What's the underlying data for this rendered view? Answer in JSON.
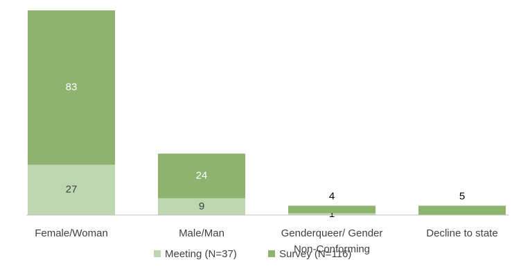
{
  "chart_data": {
    "type": "stacked-bar",
    "categories": [
      "Female/Woman",
      "Male/Man",
      "Genderqueer/ Gender Non-Conforming",
      "Decline to state"
    ],
    "series": [
      {
        "name": "Meeting (N=37)",
        "color": "#bdd7b1",
        "values": [
          27,
          9,
          1,
          0
        ]
      },
      {
        "name": "Survey (N=116)",
        "color": "#8db36e",
        "values": [
          83,
          24,
          4,
          5
        ]
      }
    ],
    "legend": "bottom"
  }
}
